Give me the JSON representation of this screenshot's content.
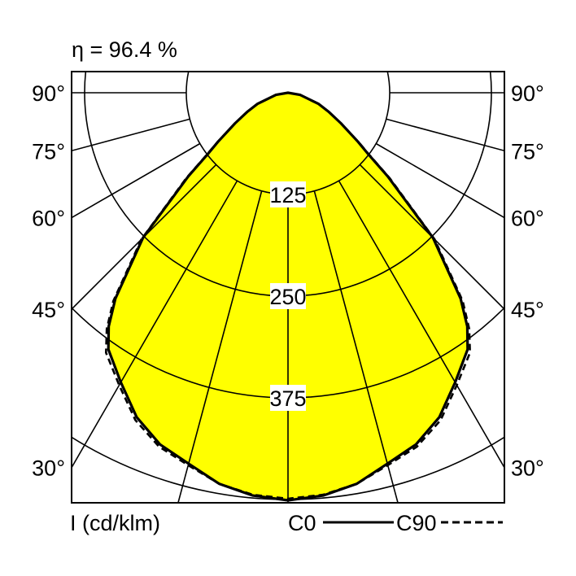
{
  "chart_data": {
    "type": "polar",
    "title": "η = 96.4 %",
    "unit_label": "I (cd/klm)",
    "radial_ticks": [
      125,
      250,
      375,
      500
    ],
    "radial_tick_labels": [
      "125",
      "250",
      "375"
    ],
    "angle_tick_labels": [
      "90°",
      "75°",
      "60°",
      "45°",
      "30°"
    ],
    "angle_ticks": [
      90,
      75,
      60,
      45,
      30
    ],
    "angle_gridlines_step_deg": 15,
    "grid": true,
    "fill_color": "#ffff00",
    "legend_placement": "bottom-right",
    "series": [
      {
        "name": "C0",
        "style": "solid",
        "angles": [
          0,
          5,
          10,
          15,
          20,
          25,
          30,
          35,
          37.5,
          40,
          45,
          50,
          52.5,
          55,
          60,
          65,
          70,
          80,
          90
        ],
        "values": [
          501,
          497,
          488,
          472,
          460,
          440,
          411,
          385,
          362,
          330,
          252,
          160,
          125,
          105,
          75,
          55,
          40,
          15,
          0
        ]
      },
      {
        "name": "C90",
        "style": "dashed",
        "angles": [
          0,
          5,
          10,
          15,
          20,
          25,
          30,
          35,
          37.5,
          40,
          45,
          50,
          52.5,
          55,
          60,
          65,
          70,
          80,
          90
        ],
        "values": [
          499,
          496,
          488,
          474,
          463,
          444,
          415,
          390,
          366,
          334,
          255,
          163,
          127,
          106,
          75,
          55,
          40,
          15,
          0
        ]
      }
    ]
  }
}
